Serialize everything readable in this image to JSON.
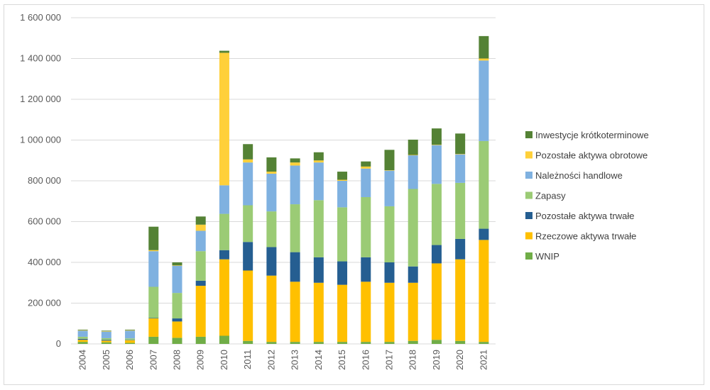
{
  "chart_data": {
    "type": "bar",
    "stacked": true,
    "categories": [
      "2004",
      "2005",
      "2006",
      "2007",
      "2008",
      "2009",
      "2010",
      "2011",
      "2012",
      "2013",
      "2014",
      "2015",
      "2016",
      "2017",
      "2018",
      "2019",
      "2020",
      "2021"
    ],
    "ylim": [
      0,
      1600000
    ],
    "yticks": [
      0,
      200000,
      400000,
      600000,
      800000,
      1000000,
      1200000,
      1400000,
      1600000
    ],
    "ytick_labels": [
      "0",
      "200 000",
      "400 000",
      "600 000",
      "800 000",
      "1 000 000",
      "1 200 000",
      "1 400 000",
      "1 600 000"
    ],
    "grid": true,
    "legend_position": "right",
    "series": [
      {
        "name": "WNIP",
        "color": "#70ad47",
        "values": [
          10000,
          8000,
          5000,
          35000,
          30000,
          35000,
          40000,
          15000,
          10000,
          10000,
          10000,
          10000,
          10000,
          10000,
          15000,
          20000,
          15000,
          10000
        ]
      },
      {
        "name": "Rzeczowe aktywa trwałe",
        "color": "#ffc000",
        "values": [
          10000,
          8000,
          13000,
          90000,
          80000,
          250000,
          375000,
          345000,
          325000,
          295000,
          290000,
          280000,
          295000,
          290000,
          285000,
          375000,
          400000,
          500000
        ]
      },
      {
        "name": "Pozostałe aktywa trwałe",
        "color": "#255e91",
        "values": [
          5000,
          4000,
          2000,
          2000,
          15000,
          25000,
          45000,
          140000,
          140000,
          145000,
          125000,
          115000,
          120000,
          100000,
          80000,
          90000,
          100000,
          55000
        ]
      },
      {
        "name": "Zapasy",
        "color": "#9bcb75",
        "values": [
          10000,
          8000,
          7000,
          153000,
          125000,
          145000,
          178000,
          180000,
          175000,
          235000,
          280000,
          265000,
          295000,
          275000,
          380000,
          300000,
          275000,
          430000
        ]
      },
      {
        "name": "Należności handlowe",
        "color": "#7fb1e0",
        "values": [
          30000,
          32000,
          38000,
          175000,
          133000,
          100000,
          140000,
          210000,
          185000,
          190000,
          185000,
          130000,
          140000,
          175000,
          165000,
          190000,
          140000,
          395000
        ]
      },
      {
        "name": "Pozostałe aktywa obrotowe",
        "color": "#ffd03a",
        "values": [
          2000,
          2000,
          2000,
          5000,
          2000,
          30000,
          650000,
          15000,
          10000,
          15000,
          10000,
          5000,
          10000,
          2000,
          2000,
          2000,
          2000,
          10000
        ]
      },
      {
        "name": "Inwestycje krótkoterminowe",
        "color": "#548235",
        "values": [
          3000,
          3000,
          3000,
          115000,
          15000,
          40000,
          10000,
          75000,
          70000,
          20000,
          40000,
          40000,
          25000,
          100000,
          75000,
          80000,
          100000,
          110000
        ]
      }
    ]
  }
}
